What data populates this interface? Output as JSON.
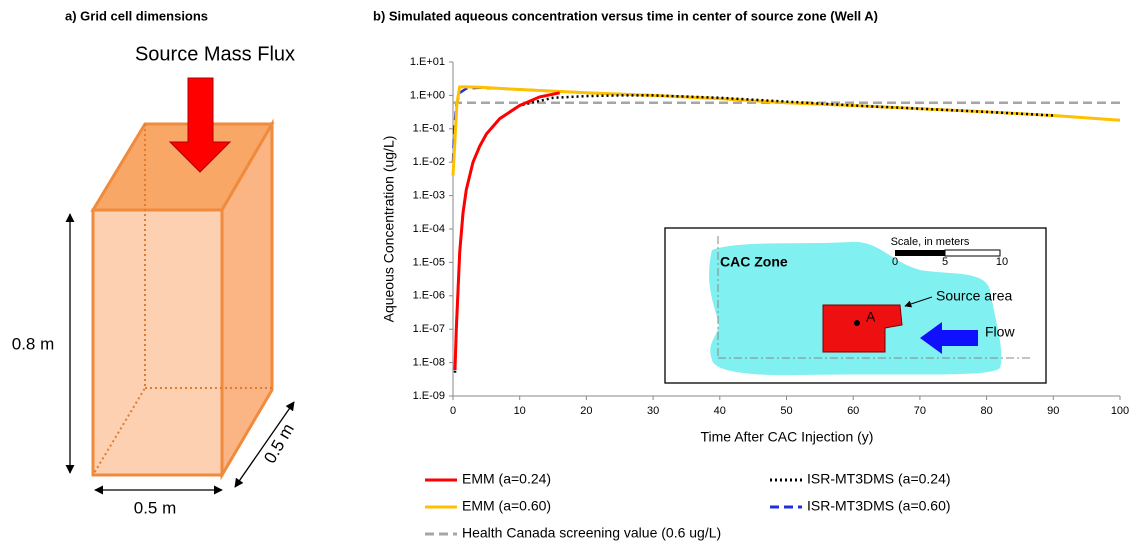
{
  "panel_a": {
    "title": "a) Grid cell dimensions",
    "flux_label": "Source Mass Flux",
    "height_label": "0.8 m",
    "width_label": "0.5 m",
    "depth_label": "0.5 m"
  },
  "inset": {
    "zone_label": "CAC Zone",
    "scale_title": "Scale, in meters",
    "scale_ticks": [
      0,
      5,
      10
    ],
    "source_label": "Source area",
    "well_label": "A",
    "flow_label": "Flow"
  },
  "chart_data": {
    "type": "line",
    "title": "b) Simulated aqueous concentration versus time in center of source zone (Well A)",
    "x_label": "Time After CAC Injection (y)",
    "y_label": "Aqueous Concentration (ug/L)",
    "log_y": true,
    "legend": "bottom",
    "xlim": [
      0,
      100
    ],
    "xticks": [
      0,
      10,
      20,
      30,
      40,
      50,
      60,
      70,
      80,
      90,
      100
    ],
    "ylim": [
      1e-09,
      10
    ],
    "yticks": [
      {
        "value": 1e-09,
        "label": "1.E-09"
      },
      {
        "value": 1e-08,
        "label": "1.E-08"
      },
      {
        "value": 1e-07,
        "label": "1.E-07"
      },
      {
        "value": 1e-06,
        "label": "1.E-06"
      },
      {
        "value": 1e-05,
        "label": "1.E-05"
      },
      {
        "value": 0.0001,
        "label": "1.E-04"
      },
      {
        "value": 0.001,
        "label": "1.E-03"
      },
      {
        "value": 0.01,
        "label": "1.E-02"
      },
      {
        "value": 0.1,
        "label": "1.E-01"
      },
      {
        "value": 1,
        "label": "1.E+00"
      },
      {
        "value": 10,
        "label": "1.E+01"
      }
    ],
    "series": [
      {
        "name": "EMM (a=0.24)",
        "color": "#ff0000",
        "line_style": "solid",
        "x": [
          0.3,
          0.5,
          1,
          1.5,
          2,
          3,
          4,
          5,
          7,
          10,
          13,
          16
        ],
        "values": [
          6e-09,
          1e-07,
          2e-05,
          0.0003,
          0.0015,
          0.01,
          0.03,
          0.07,
          0.2,
          0.5,
          0.9,
          1.2
        ]
      },
      {
        "name": "ISR-MT3DMS (a=0.24)",
        "color": "#000000",
        "line_style": "dotted",
        "x": [
          0.3,
          0.5,
          1,
          1.5,
          2,
          3,
          4,
          5,
          7,
          10,
          15,
          20,
          25,
          30,
          40,
          50,
          60,
          70,
          80,
          90
        ],
        "values": [
          5e-09,
          1e-07,
          2e-05,
          0.0003,
          0.0015,
          0.01,
          0.03,
          0.07,
          0.2,
          0.5,
          0.85,
          0.95,
          1.0,
          1.0,
          0.85,
          0.65,
          0.5,
          0.4,
          0.32,
          0.25
        ]
      },
      {
        "name": "EMM (a=0.60)",
        "color": "#ffc000",
        "line_style": "solid",
        "x": [
          0,
          0.3,
          0.6,
          1,
          2,
          4,
          10,
          20,
          30,
          40,
          50,
          60,
          70,
          80,
          90,
          100
        ],
        "values": [
          0.004,
          0.05,
          0.6,
          1.8,
          1.8,
          1.75,
          1.5,
          1.2,
          1.0,
          0.8,
          0.6,
          0.5,
          0.4,
          0.32,
          0.25,
          0.18
        ]
      },
      {
        "name": "ISR-MT3DMS (a=0.60)",
        "color": "#1f2fe0",
        "line_style": "dashed",
        "x": [
          0,
          0.2,
          0.5,
          1,
          2,
          4,
          10,
          20,
          30,
          40,
          50,
          60,
          70,
          80,
          90
        ],
        "values": [
          0.01,
          0.1,
          0.5,
          1.2,
          1.6,
          1.7,
          1.5,
          1.2,
          1.0,
          0.8,
          0.6,
          0.5,
          0.4,
          0.32,
          0.25
        ]
      },
      {
        "name": "Health Canada screening value (0.6 ug/L)",
        "color": "#a6a6a6",
        "line_style": "dashed",
        "x": [
          0,
          100
        ],
        "values": [
          0.6,
          0.6
        ]
      }
    ]
  }
}
